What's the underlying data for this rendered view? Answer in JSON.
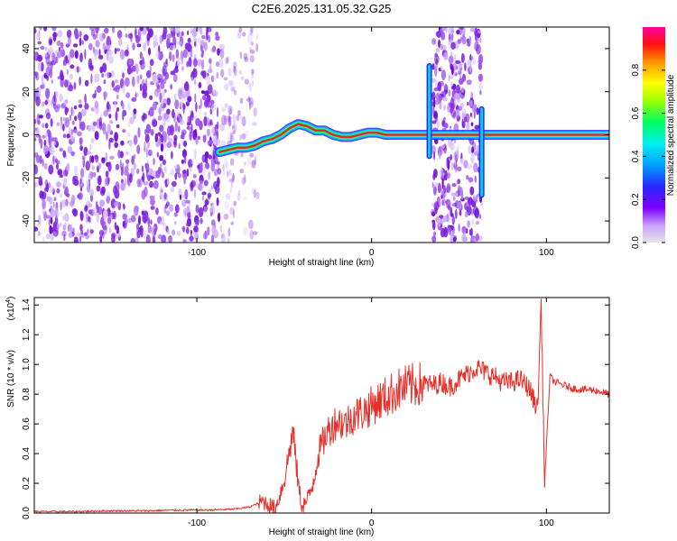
{
  "figure": {
    "title": "C2E6.2025.131.05.32.G25"
  },
  "colors": {
    "snr_line": "#e8302a",
    "track": "#d8283c",
    "noise": "#7a1fd6"
  },
  "chart_data": [
    {
      "type": "heatmap",
      "xlabel": "Height of straight line (km)",
      "ylabel": "Frequency (Hz)",
      "xlim": [
        -193,
        136
      ],
      "ylim": [
        -50,
        50
      ],
      "xticks": [
        -100,
        0,
        100
      ],
      "yticks": [
        40,
        20,
        0,
        -20,
        -40
      ],
      "colorbar": {
        "label": "Normalized spectral amplitude",
        "range": [
          0,
          1
        ],
        "ticks": [
          "0.0",
          "0.2",
          "0.4",
          "0.6",
          "0.8"
        ],
        "tick_values": [
          0,
          0.2,
          0.4,
          0.6,
          0.8
        ],
        "colormap": [
          "#e0e0e0",
          "#b040ff",
          "#7a00ff",
          "#2030ff",
          "#00a0ff",
          "#00e8e0",
          "#00ff40",
          "#a0ff00",
          "#ffff00",
          "#ff8000",
          "#ff0000",
          "#ff0080"
        ]
      },
      "noise_regions": [
        {
          "x": [
            -193,
            -86
          ],
          "density": "high"
        },
        {
          "x": [
            -86,
            -65
          ],
          "density": "low"
        },
        {
          "x": [
            35,
            63
          ],
          "density": "medium"
        }
      ],
      "track": {
        "x": [
          -87,
          -82,
          -77,
          -72,
          -67,
          -62,
          -57,
          -52,
          -47,
          -42,
          -37,
          -32,
          -27,
          -22,
          -17,
          -12,
          -7,
          -2,
          3,
          8,
          13,
          18,
          23,
          28,
          33,
          38,
          43,
          48,
          53,
          58,
          63,
          68,
          73,
          78,
          83,
          88,
          93,
          98,
          103,
          108,
          113,
          118,
          123,
          128,
          133,
          136
        ],
        "y": [
          -8,
          -7,
          -6,
          -6,
          -5,
          -3,
          -2,
          0,
          3,
          5,
          4,
          2,
          2,
          0,
          -1,
          -1,
          0,
          1,
          1,
          0,
          0,
          0,
          0,
          0,
          0,
          0,
          0,
          0,
          0,
          0,
          0,
          0,
          0,
          0,
          0,
          0,
          0,
          0,
          0,
          0,
          0,
          0,
          0,
          0,
          0,
          0
        ]
      },
      "spikes": [
        {
          "x": 33,
          "y": [
            -10,
            32
          ]
        },
        {
          "x": 63,
          "y": [
            -28,
            12
          ]
        }
      ]
    },
    {
      "type": "line",
      "xlabel": "Height of straight line (km)",
      "ylabel": "SNR (10 * v/v)",
      "scale_label": "(x10",
      "scale_exponent": "4",
      "xlim": [
        -193,
        136
      ],
      "ylim": [
        0,
        1.45
      ],
      "xticks": [
        -100,
        0,
        100
      ],
      "yticks": [
        0,
        0.2,
        0.4,
        0.6,
        0.8,
        1.0,
        1.2,
        1.4
      ],
      "ytick_labels": [
        "0.0",
        "0.2",
        "0.4",
        "0.6",
        "0.8",
        "1.0",
        "1.2",
        "1.4"
      ],
      "series": [
        {
          "x": [
            -193,
            -170,
            -150,
            -130,
            -110,
            -95,
            -80,
            -70,
            -62,
            -58,
            -55,
            -50,
            -45,
            -42,
            -40,
            -37,
            -34,
            -30,
            -25,
            -20,
            -15,
            -10,
            -5,
            0,
            5,
            10,
            15,
            20,
            25,
            30,
            35,
            40,
            45,
            50,
            55,
            60,
            65,
            70,
            75,
            80,
            85,
            90,
            95,
            97,
            99,
            102,
            105,
            110,
            115,
            120,
            125,
            130,
            136
          ],
          "y": [
            0.01,
            0.01,
            0.015,
            0.015,
            0.02,
            0.02,
            0.025,
            0.04,
            0.08,
            0.05,
            0.03,
            0.22,
            0.55,
            0.2,
            0.05,
            0.08,
            0.18,
            0.42,
            0.55,
            0.62,
            0.6,
            0.66,
            0.68,
            0.72,
            0.76,
            0.79,
            0.83,
            0.85,
            0.86,
            0.87,
            0.86,
            0.88,
            0.85,
            0.9,
            0.94,
            0.98,
            0.95,
            0.92,
            0.88,
            0.88,
            0.9,
            0.84,
            0.7,
            1.42,
            0.2,
            0.92,
            0.88,
            0.86,
            0.84,
            0.83,
            0.83,
            0.82,
            0.8
          ]
        }
      ]
    }
  ]
}
